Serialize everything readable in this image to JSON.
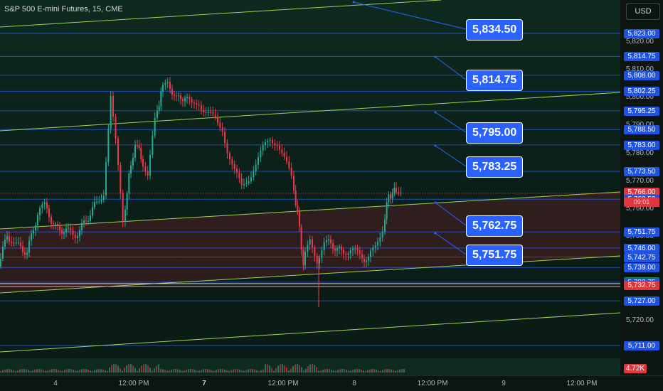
{
  "header": {
    "title": "S&P 500 E-mini Futures, 15, CME",
    "currency_button": "USD"
  },
  "colors": {
    "up": "#22ab94",
    "down": "#f23645",
    "level_line": "#2962ff",
    "trend_line": "#9cd35c",
    "callout_bg": "#2962ff"
  },
  "price_levels": [
    {
      "value": "5,823.00",
      "style": "blue"
    },
    {
      "value": "5,814.75",
      "style": "blue"
    },
    {
      "value": "5,808.00",
      "style": "blue"
    },
    {
      "value": "5,802.25",
      "style": "blue"
    },
    {
      "value": "5,795.25",
      "style": "blue"
    },
    {
      "value": "5,788.50",
      "style": "blue"
    },
    {
      "value": "5,783.00",
      "style": "blue"
    },
    {
      "value": "5,773.50",
      "style": "blue"
    },
    {
      "value": "5,766.00",
      "style": "red"
    },
    {
      "value": "5,763.50",
      "style": "blue"
    },
    {
      "value": "5,751.75",
      "style": "blue"
    },
    {
      "value": "5,746.00",
      "style": "blue"
    },
    {
      "value": "5,742.75",
      "style": "blue"
    },
    {
      "value": "5,739.00",
      "style": "blue"
    },
    {
      "value": "5,734.00",
      "style": "green"
    },
    {
      "value": "5,733.75",
      "style": "blue"
    },
    {
      "value": "5,732.75",
      "style": "red"
    },
    {
      "value": "5,727.00",
      "style": "blue"
    },
    {
      "value": "5,711.00",
      "style": "blue"
    }
  ],
  "axis_ticks": [
    "5,820.00",
    "5,810.00",
    "5,800.00",
    "5,790.00",
    "5,780.00",
    "5,770.00",
    "5,760.00",
    "5,750.00",
    "5,720.00"
  ],
  "countdown": "09:01",
  "callouts": [
    "5,834.50",
    "5,814.75",
    "5,795.00",
    "5,783.25",
    "5,762.75",
    "5,751.75"
  ],
  "volume_label": "4.72K",
  "x_ticks": [
    {
      "label": "4",
      "bold": false
    },
    {
      "label": "12:00 PM",
      "bold": false
    },
    {
      "label": "7",
      "bold": true
    },
    {
      "label": "12:00 PM",
      "bold": false
    },
    {
      "label": "8",
      "bold": false
    },
    {
      "label": "12:00 PM",
      "bold": false
    },
    {
      "label": "9",
      "bold": false
    },
    {
      "label": "12:00 PM",
      "bold": false
    }
  ]
}
